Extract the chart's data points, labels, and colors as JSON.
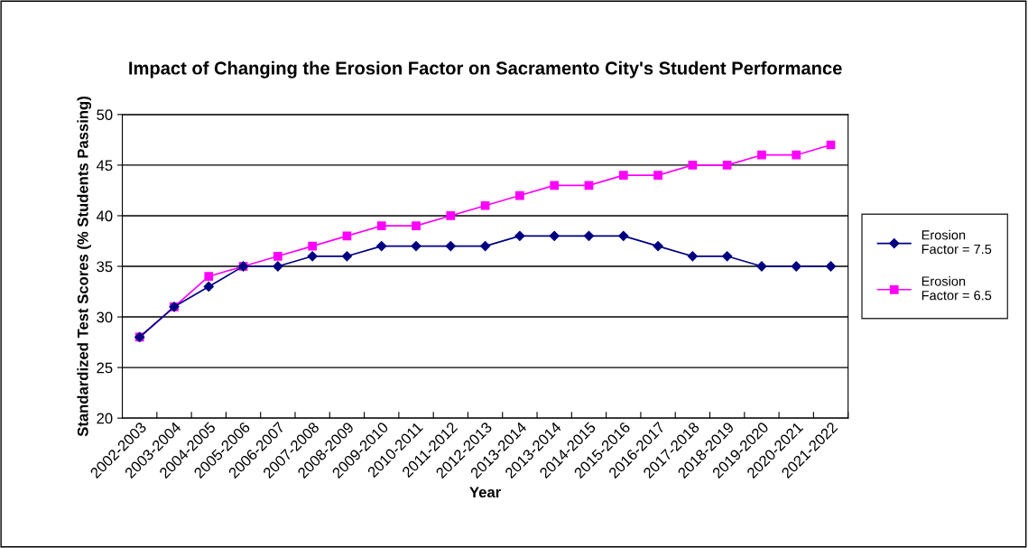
{
  "chart_data": {
    "type": "line",
    "title": "Impact of Changing the Erosion Factor on Sacramento City's Student Performance",
    "xlabel": "Year",
    "ylabel": "Standardized Test Scores (% Students Passing)",
    "categories": [
      "2002-2003",
      "2003-2004",
      "2004-2005",
      "2005-2006",
      "2006-2007",
      "2007-2008",
      "2008-2009",
      "2009-2010",
      "2010-2011",
      "2011-2012",
      "2012-2013",
      "2013-2014",
      "2013-2014",
      "2014-2015",
      "2015-2016",
      "2016-2017",
      "2017-2018",
      "2018-2019",
      "2019-2020",
      "2020-2021",
      "2021-2022"
    ],
    "series": [
      {
        "name": "Erosion Factor = 7.5",
        "color": "#000080",
        "marker": "diamond",
        "values": [
          28,
          31,
          33,
          35,
          35,
          36,
          36,
          37,
          37,
          37,
          37,
          38,
          38,
          38,
          38,
          37,
          36,
          36,
          35,
          35,
          35
        ]
      },
      {
        "name": "Erosion Factor = 6.5",
        "color": "#ff00ff",
        "marker": "square",
        "values": [
          28,
          31,
          34,
          35,
          36,
          37,
          38,
          39,
          39,
          40,
          41,
          42,
          43,
          43,
          44,
          44,
          45,
          45,
          46,
          46,
          47
        ]
      }
    ],
    "ylim": [
      20,
      50
    ],
    "yticks": [
      20,
      25,
      30,
      35,
      40,
      45,
      50
    ],
    "grid": "y",
    "legend": "right",
    "line_style": "solid"
  }
}
